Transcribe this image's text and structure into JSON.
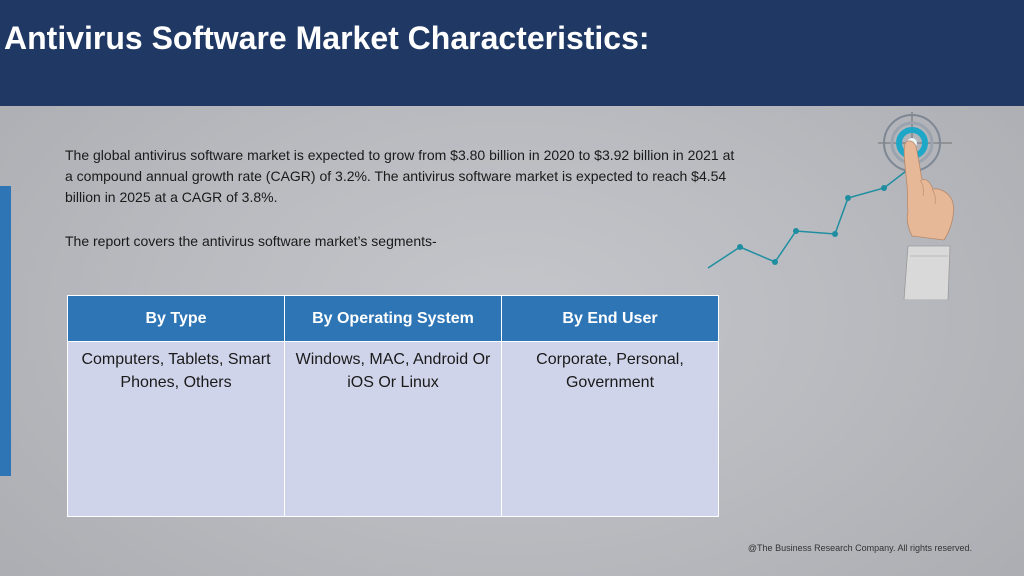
{
  "slide": {
    "title": "Antivirus Software Market Characteristics:",
    "paragraphs": [
      "The global antivirus software market is expected to grow from $3.80 billion in 2020 to $3.92 billion in 2021 at a compound annual growth rate (CAGR) of 3.2%. The antivirus software market is expected to reach $4.54 billion in 2025 at a CAGR of 3.8%.",
      "The report covers the antivirus software market’s segments-"
    ],
    "table": {
      "headers": [
        "By Type",
        "By Operating System",
        "By End User"
      ],
      "row": [
        "Computers, Tablets, Smart Phones, Others",
        "Windows, MAC, Android Or iOS Or Linux",
        "Corporate, Personal, Government"
      ]
    },
    "footer": "@The Business Research Company. All rights reserved.",
    "graphic": "finger-touching-target-growth-chart-icon",
    "colors": {
      "header": "#203864",
      "accent": "#2e75b6",
      "table_header": "#2e75b6",
      "table_cell": "#d0d4ea",
      "chart_line": "#1f8ea0"
    }
  }
}
